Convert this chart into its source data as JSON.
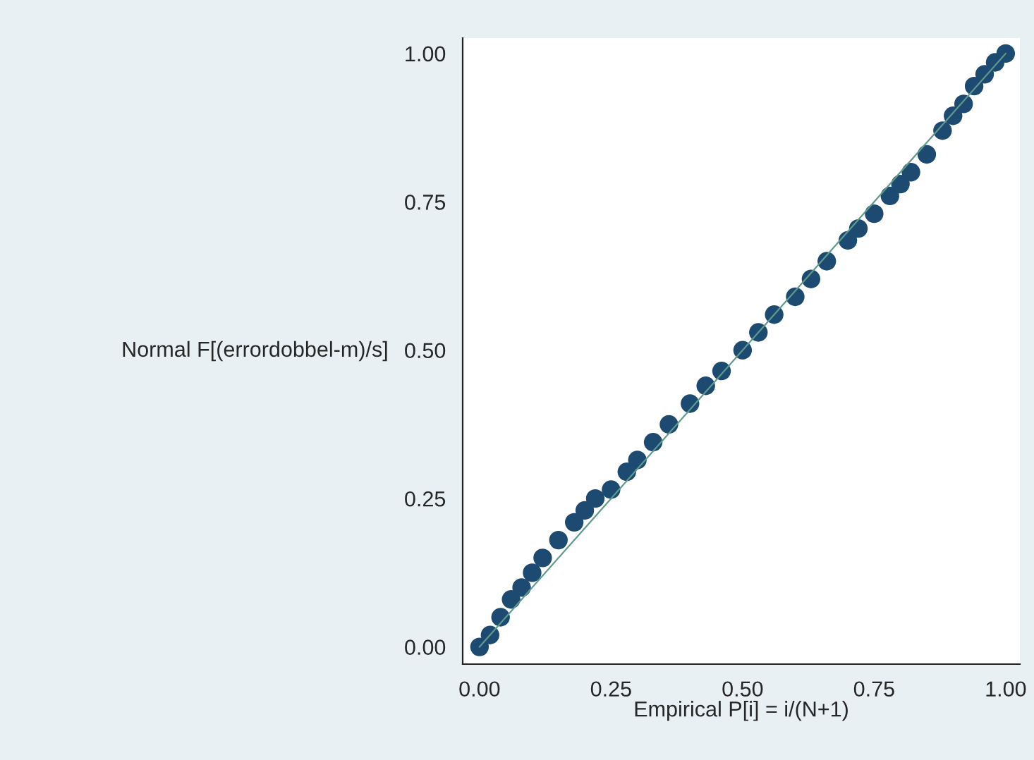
{
  "chart_data": {
    "type": "scatter",
    "xlabel": "Empirical P[i] = i/(N+1)",
    "ylabel": "Normal F[(errordobbel-m)/s]",
    "xlim": [
      -0.032,
      1.027
    ],
    "ylim": [
      -0.029,
      1.026
    ],
    "xticks": [
      {
        "value": 0,
        "label": "0.00"
      },
      {
        "value": 0.25,
        "label": "0.25"
      },
      {
        "value": 0.5,
        "label": "0.50"
      },
      {
        "value": 0.75,
        "label": "0.75"
      },
      {
        "value": 1,
        "label": "1.00"
      }
    ],
    "yticks": [
      {
        "value": 0,
        "label": "0.00"
      },
      {
        "value": 0.25,
        "label": "0.25"
      },
      {
        "value": 0.5,
        "label": "0.50"
      },
      {
        "value": 0.75,
        "label": "0.75"
      },
      {
        "value": 1,
        "label": "1.00"
      }
    ],
    "grid": false,
    "legend": false,
    "series": [
      {
        "marker": "circle",
        "color": "#1c4a70",
        "x": [
          0,
          0.02,
          0.04,
          0.06,
          0.08,
          0.1,
          0.12,
          0.15,
          0.18,
          0.2,
          0.22,
          0.25,
          0.28,
          0.3,
          0.33,
          0.36,
          0.4,
          0.43,
          0.46,
          0.5,
          0.53,
          0.56,
          0.6,
          0.63,
          0.66,
          0.7,
          0.72,
          0.75,
          0.78,
          0.8,
          0.82,
          0.85,
          0.88,
          0.9,
          0.92,
          0.94,
          0.96,
          0.98,
          1.0
        ],
        "values": [
          0,
          0.02,
          0.05,
          0.08,
          0.1,
          0.125,
          0.15,
          0.18,
          0.21,
          0.23,
          0.25,
          0.265,
          0.295,
          0.315,
          0.345,
          0.375,
          0.41,
          0.44,
          0.465,
          0.5,
          0.53,
          0.56,
          0.59,
          0.62,
          0.65,
          0.685,
          0.705,
          0.73,
          0.76,
          0.78,
          0.8,
          0.83,
          0.87,
          0.895,
          0.915,
          0.945,
          0.965,
          0.985,
          1.0
        ]
      },
      {
        "type": "line",
        "color": "#5f9a8c",
        "x": [
          0,
          1
        ],
        "values": [
          0,
          1
        ]
      }
    ]
  }
}
